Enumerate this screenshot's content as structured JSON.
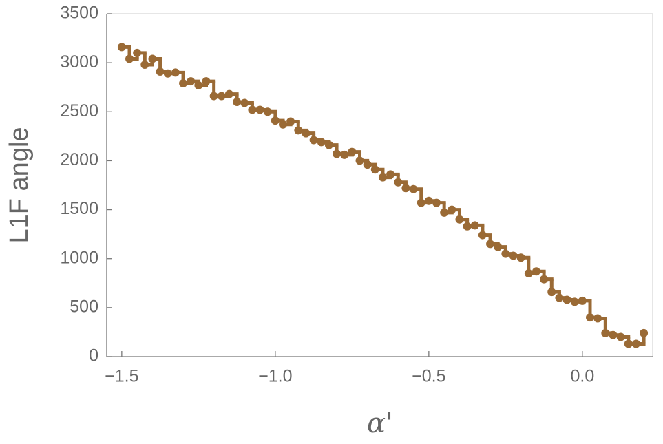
{
  "chart_data": {
    "type": "step",
    "x_label": "α'",
    "y_label": "L1F angle",
    "xlim": [
      -1.549,
      0.229
    ],
    "ylim": [
      0,
      3500
    ],
    "xticks": [
      {
        "value": -1.5,
        "label": "−1.5"
      },
      {
        "value": -1.0,
        "label": "−1.0"
      },
      {
        "value": -0.5,
        "label": "−0.5"
      },
      {
        "value": 0.0,
        "label": "0.0"
      }
    ],
    "yticks": [
      0,
      500,
      1000,
      1500,
      2000,
      2500,
      3000,
      3500
    ],
    "color": "#9a6a35",
    "x": [
      -1.5,
      -1.475,
      -1.45,
      -1.425,
      -1.4,
      -1.375,
      -1.35,
      -1.325,
      -1.3,
      -1.275,
      -1.25,
      -1.225,
      -1.2,
      -1.175,
      -1.15,
      -1.125,
      -1.1,
      -1.075,
      -1.05,
      -1.025,
      -1.0,
      -0.975,
      -0.95,
      -0.925,
      -0.9,
      -0.875,
      -0.85,
      -0.825,
      -0.8,
      -0.775,
      -0.75,
      -0.725,
      -0.7,
      -0.675,
      -0.65,
      -0.625,
      -0.6,
      -0.575,
      -0.55,
      -0.525,
      -0.5,
      -0.475,
      -0.45,
      -0.425,
      -0.4,
      -0.375,
      -0.35,
      -0.325,
      -0.3,
      -0.275,
      -0.25,
      -0.225,
      -0.2,
      -0.175,
      -0.15,
      -0.125,
      -0.1,
      -0.075,
      -0.05,
      -0.025,
      0.0,
      0.025,
      0.05,
      0.075,
      0.1,
      0.125,
      0.15,
      0.175,
      0.2
    ],
    "values": [
      3160,
      3040,
      3100,
      2980,
      3040,
      2910,
      2890,
      2900,
      2790,
      2810,
      2770,
      2810,
      2660,
      2660,
      2680,
      2600,
      2590,
      2520,
      2520,
      2500,
      2410,
      2370,
      2400,
      2310,
      2280,
      2210,
      2190,
      2160,
      2070,
      2060,
      2090,
      2000,
      1960,
      1910,
      1830,
      1860,
      1780,
      1720,
      1710,
      1570,
      1590,
      1570,
      1470,
      1500,
      1400,
      1330,
      1340,
      1240,
      1150,
      1120,
      1050,
      1030,
      1010,
      850,
      870,
      790,
      660,
      600,
      580,
      560,
      570,
      400,
      390,
      240,
      220,
      200,
      130,
      130,
      240
    ]
  }
}
